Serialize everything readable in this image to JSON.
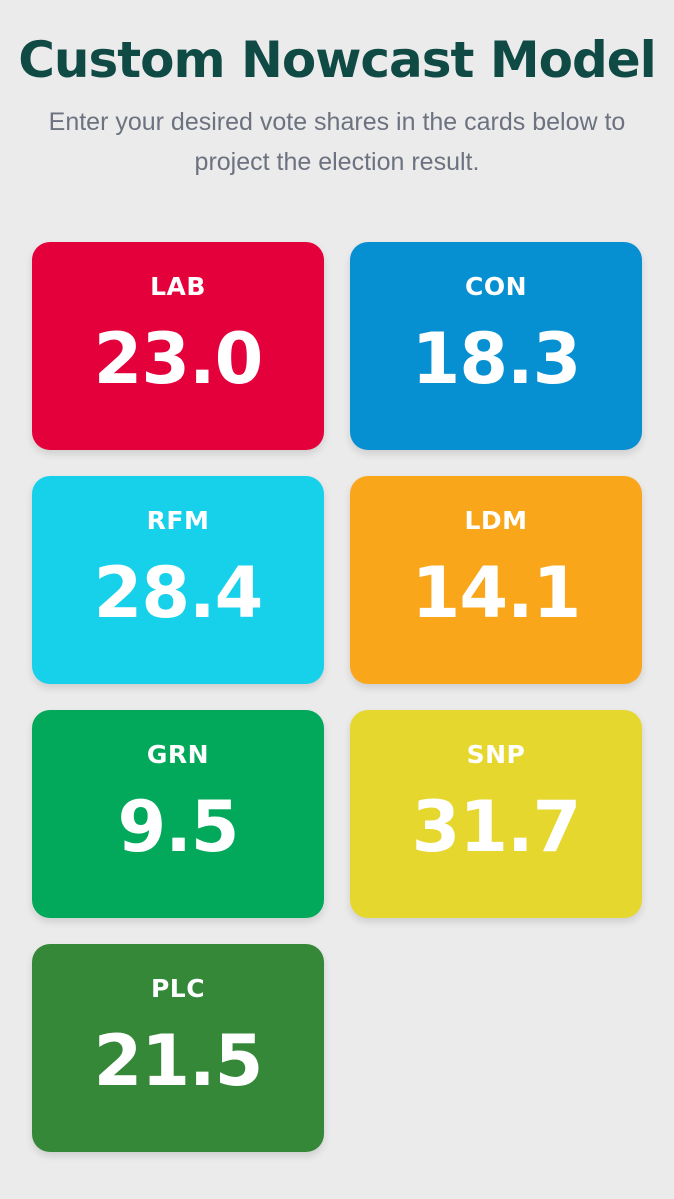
{
  "header": {
    "title": "Custom Nowcast Model",
    "subtitle": "Enter your desired vote shares in the cards below to project the election result."
  },
  "parties": [
    {
      "code": "LAB",
      "value": "23.0",
      "color": "#e4003b"
    },
    {
      "code": "CON",
      "value": "18.3",
      "color": "#0690d2"
    },
    {
      "code": "RFM",
      "value": "28.4",
      "color": "#17d0ea"
    },
    {
      "code": "LDM",
      "value": "14.1",
      "color": "#faa61a"
    },
    {
      "code": "GRN",
      "value": "9.5",
      "color": "#02a95b"
    },
    {
      "code": "SNP",
      "value": "31.7",
      "color": "#e5d72d"
    },
    {
      "code": "PLC",
      "value": "21.5",
      "color": "#348837"
    }
  ],
  "colors": {
    "background": "#ebebeb",
    "title": "#0f4a45",
    "subtitle": "#6d7280"
  }
}
